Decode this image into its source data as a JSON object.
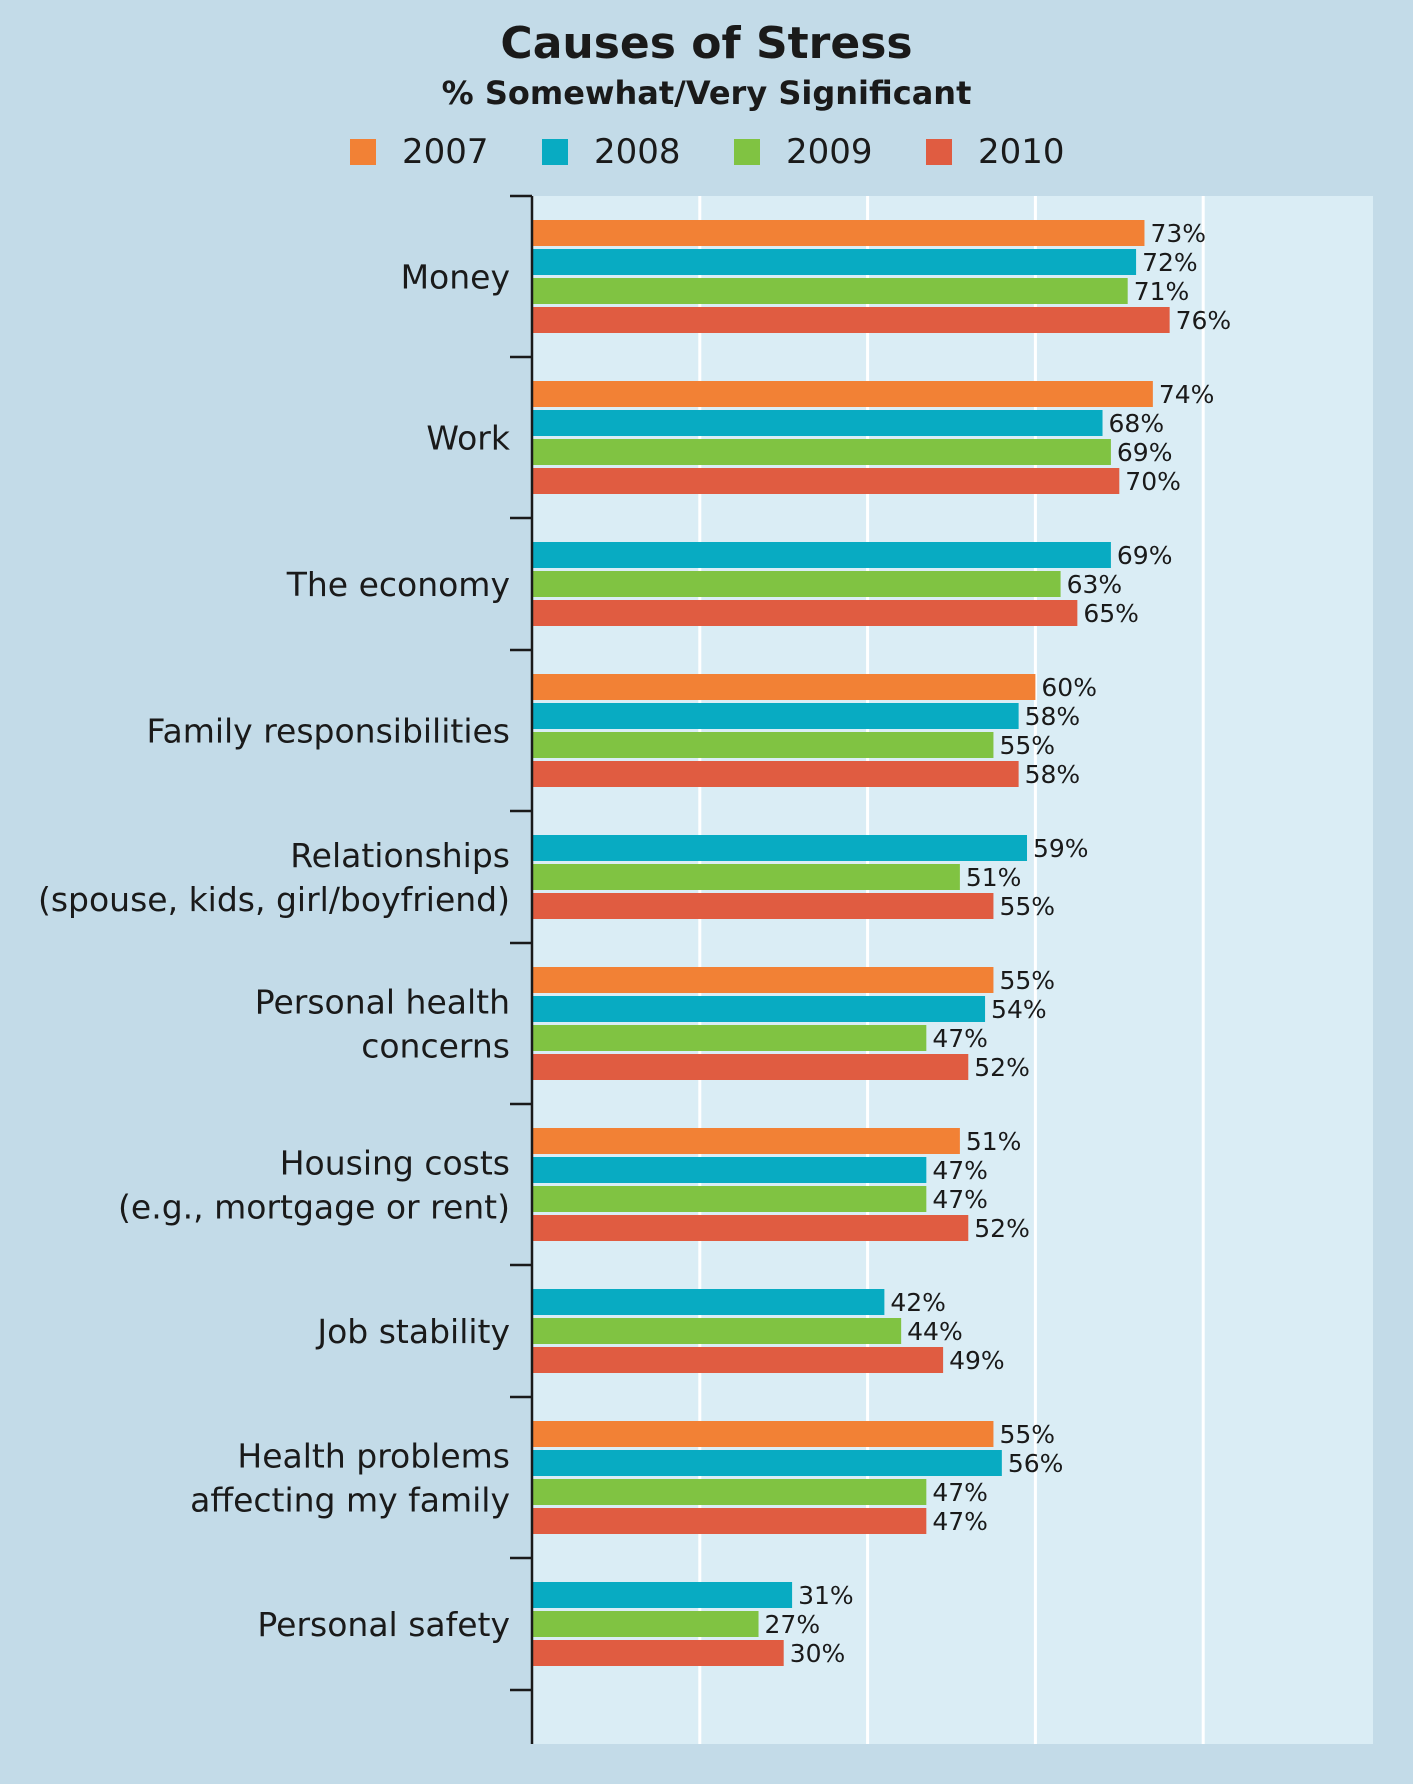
{
  "chart_data": {
    "type": "bar",
    "orientation": "horizontal",
    "title": "Causes of Stress",
    "subtitle": "% Somewhat/Very Significant",
    "xlim": [
      0,
      100
    ],
    "grid": true,
    "legend_position": "top",
    "value_suffix": "%",
    "series": [
      {
        "name": "2007",
        "color": "#f28135"
      },
      {
        "name": "2008",
        "color": "#08abc2"
      },
      {
        "name": "2009",
        "color": "#80c342"
      },
      {
        "name": "2010",
        "color": "#e05c41"
      }
    ],
    "categories": [
      {
        "label": [
          "Money"
        ],
        "values": [
          73,
          72,
          71,
          76
        ]
      },
      {
        "label": [
          "Work"
        ],
        "values": [
          74,
          68,
          69,
          70
        ]
      },
      {
        "label": [
          "The economy"
        ],
        "values": [
          null,
          69,
          63,
          65
        ]
      },
      {
        "label": [
          "Family responsibilities"
        ],
        "values": [
          60,
          58,
          55,
          58
        ]
      },
      {
        "label": [
          "Relationships",
          "(spouse, kids, girl/boyfriend)"
        ],
        "values": [
          null,
          59,
          51,
          55
        ]
      },
      {
        "label": [
          "Personal health",
          "concerns"
        ],
        "values": [
          55,
          54,
          47,
          52
        ]
      },
      {
        "label": [
          "Housing costs",
          "(e.g., mortgage or rent)"
        ],
        "values": [
          51,
          47,
          47,
          52
        ]
      },
      {
        "label": [
          "Job stability"
        ],
        "values": [
          null,
          42,
          44,
          49
        ]
      },
      {
        "label": [
          "Health problems",
          "affecting my family"
        ],
        "values": [
          55,
          56,
          47,
          47
        ]
      },
      {
        "label": [
          "Personal safety"
        ],
        "values": [
          null,
          31,
          27,
          30
        ]
      }
    ]
  }
}
